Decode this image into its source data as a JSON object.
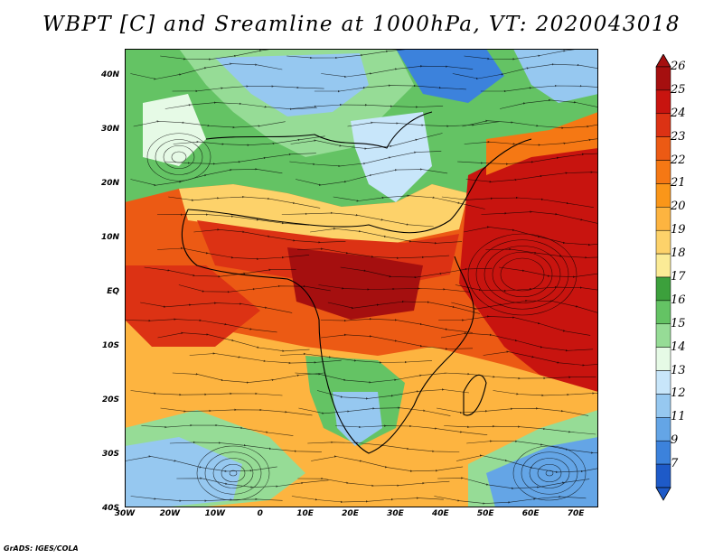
{
  "title": "WBPT [C] and Sreamline at 1000hPa, VT: 2020043018",
  "credit": "GrADS: IGES/COLA",
  "map": {
    "lon_range": [
      -30,
      75
    ],
    "lat_range": [
      -40,
      45
    ],
    "lat_labels": [
      "40N",
      "30N",
      "20N",
      "10N",
      "EQ",
      "10S",
      "20S",
      "30S",
      "40S"
    ],
    "lon_labels": [
      "30W",
      "20W",
      "10W",
      "0",
      "10E",
      "20E",
      "30E",
      "40E",
      "50E",
      "60E",
      "70E"
    ]
  },
  "colorbar": {
    "levels": [
      "26",
      "25",
      "24",
      "23",
      "22",
      "21",
      "20",
      "19",
      "18",
      "17",
      "16",
      "15",
      "14",
      "13",
      "12",
      "11",
      "9",
      "7"
    ],
    "colors": [
      "#a50f0f",
      "#c8140f",
      "#dc3214",
      "#ec5a14",
      "#f57814",
      "#fa9619",
      "#fdb440",
      "#fdd26a",
      "#fbeb96",
      "#3ca03c",
      "#64c364",
      "#96dc96",
      "#e6fae6",
      "#c8e6fa",
      "#96c8f0",
      "#64a5e6",
      "#3c82dc",
      "#1e5ac8"
    ]
  }
}
